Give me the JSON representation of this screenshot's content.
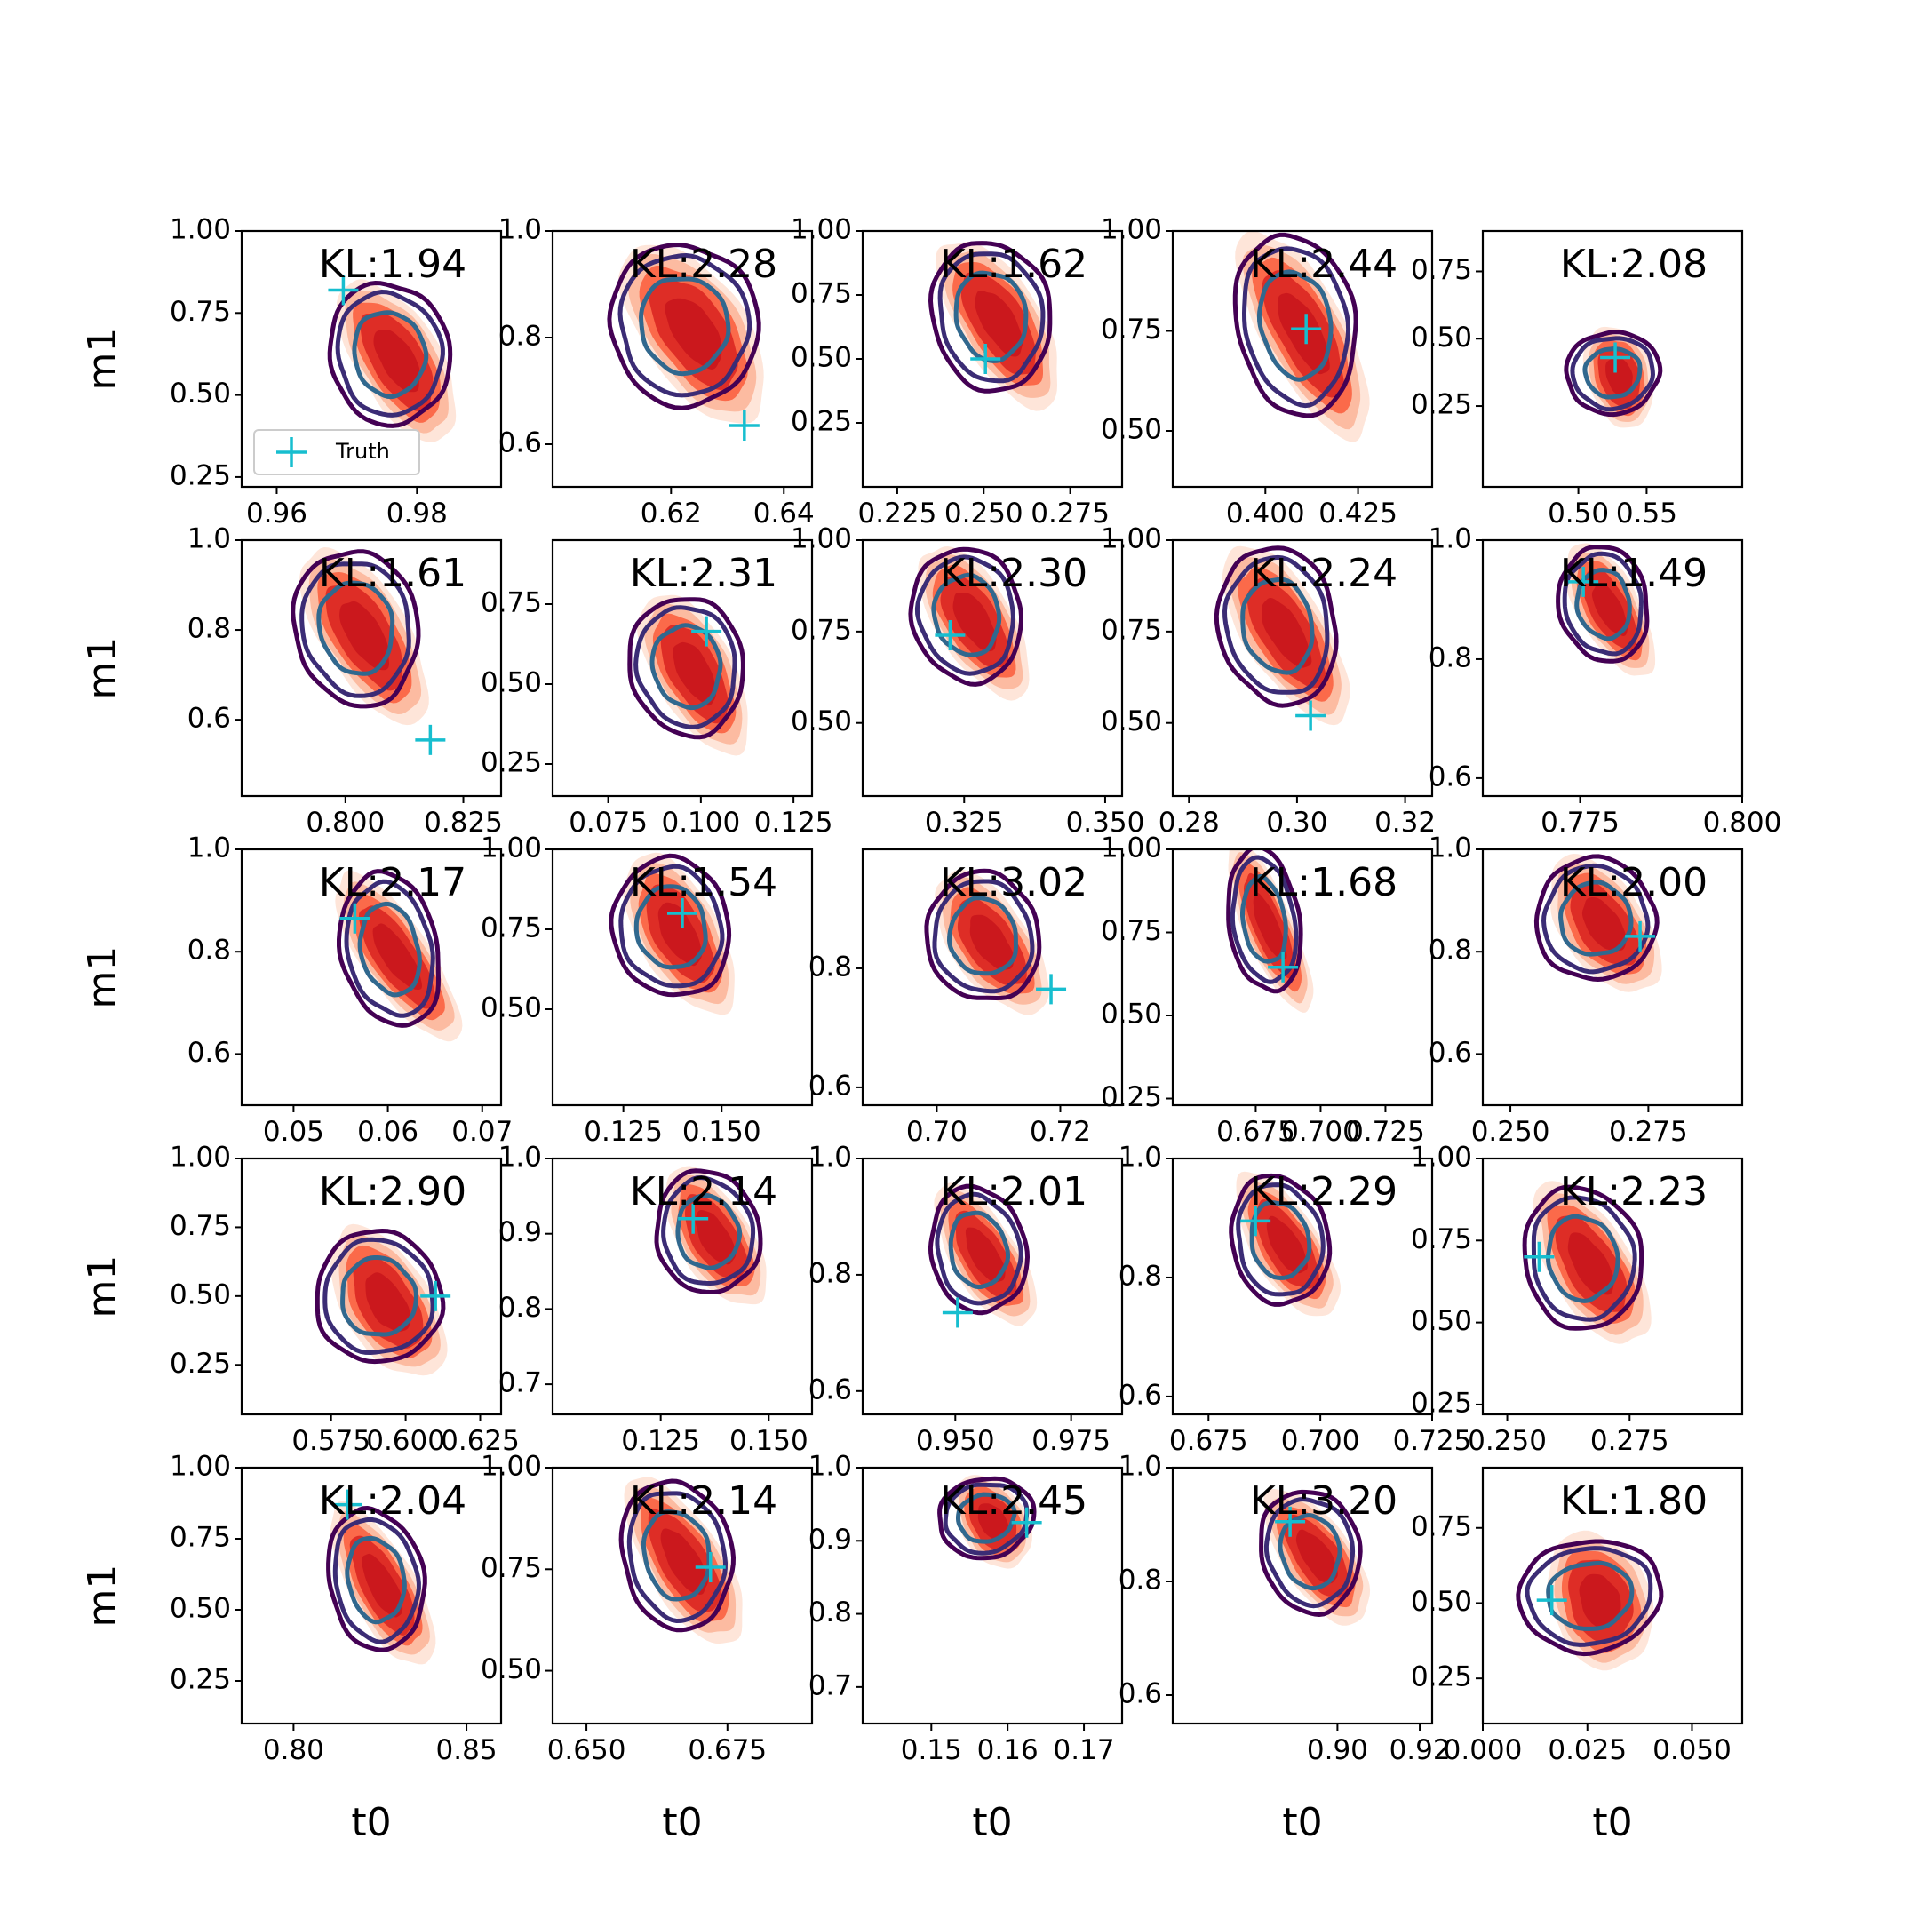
{
  "chart_data": {
    "type": "scatter",
    "grid": false,
    "xlabel": "t0",
    "ylabel": "m1",
    "legend": {
      "label": "Truth",
      "placement": "lower-left",
      "panel": 0
    },
    "colors": {
      "fill": [
        "#fee5d9",
        "#fcbba1",
        "#fb6a4a",
        "#de2d26",
        "#cb181d"
      ],
      "contour_outer": "#440154",
      "contour_mid": "#3b2c75",
      "contour_inner": "#31688e",
      "truth": "#17becf"
    },
    "panels": [
      {
        "kl": "KL:1.94",
        "xlim": [
          0.955,
          0.992
        ],
        "ylim": [
          0.22,
          1.0
        ],
        "xticks": [
          0.96,
          0.98
        ],
        "xtick_labels": [
          "0.96",
          "0.98"
        ],
        "yticks": [
          0.25,
          0.5,
          0.75,
          1.0
        ],
        "ytick_labels": [
          "0.25",
          "0.50",
          "0.75",
          "1.00"
        ],
        "truth": [
          0.9695,
          0.82
        ],
        "center": [
          0.9765,
          0.62
        ],
        "spread": [
          0.0075,
          0.2
        ],
        "tilt": -0.55
      },
      {
        "kl": "KL:2.28",
        "xlim": [
          0.599,
          0.645
        ],
        "ylim": [
          0.52,
          1.0
        ],
        "xticks": [
          0.62,
          0.64
        ],
        "xtick_labels": [
          "0.62",
          "0.64"
        ],
        "yticks": [
          0.6,
          0.8,
          1.0
        ],
        "ytick_labels": [
          "0.6",
          "0.8",
          "1.0"
        ],
        "truth": [
          0.633,
          0.635
        ],
        "center": [
          0.623,
          0.82
        ],
        "spread": [
          0.0115,
          0.14
        ],
        "tilt": -0.6
      },
      {
        "kl": "KL:1.62",
        "xlim": [
          0.215,
          0.29
        ],
        "ylim": [
          0.0,
          1.0
        ],
        "xticks": [
          0.225,
          0.25,
          0.275
        ],
        "xtick_labels": [
          "0.225",
          "0.250",
          "0.275"
        ],
        "yticks": [
          0.25,
          0.5,
          0.75,
          1.0
        ],
        "ytick_labels": [
          "0.25",
          "0.50",
          "0.75",
          "1.00"
        ],
        "truth": [
          0.2505,
          0.5
        ],
        "center": [
          0.253,
          0.66
        ],
        "spread": [
          0.015,
          0.27
        ],
        "tilt": -0.55
      },
      {
        "kl": "KL:2.44",
        "xlim": [
          0.375,
          0.445
        ],
        "ylim": [
          0.36,
          1.0
        ],
        "xticks": [
          0.4,
          0.425
        ],
        "xtick_labels": [
          "0.400",
          "0.425"
        ],
        "yticks": [
          0.5,
          0.75,
          1.0
        ],
        "ytick_labels": [
          "0.50",
          "0.75",
          "1.00"
        ],
        "truth": [
          0.411,
          0.755
        ],
        "center": [
          0.409,
          0.76
        ],
        "spread": [
          0.014,
          0.21
        ],
        "tilt": -0.5
      },
      {
        "kl": "KL:2.08",
        "xlim": [
          0.43,
          0.62
        ],
        "ylim": [
          -0.05,
          0.9
        ],
        "xticks": [
          0.5,
          0.55
        ],
        "xtick_labels": [
          "0.50",
          "0.55"
        ],
        "yticks": [
          0.25,
          0.5,
          0.75
        ],
        "ytick_labels": [
          "0.25",
          "0.50",
          "0.75"
        ],
        "truth": [
          0.527,
          0.43
        ],
        "center": [
          0.527,
          0.37
        ],
        "spread": [
          0.03,
          0.14
        ],
        "tilt": -0.3
      },
      {
        "kl": "KL:1.61",
        "xlim": [
          0.778,
          0.833
        ],
        "ylim": [
          0.43,
          1.0
        ],
        "xticks": [
          0.8,
          0.825
        ],
        "xtick_labels": [
          "0.800",
          "0.825"
        ],
        "yticks": [
          0.6,
          0.8,
          1.0
        ],
        "ytick_labels": [
          "0.6",
          "0.8",
          "1.0"
        ],
        "truth": [
          0.818,
          0.555
        ],
        "center": [
          0.803,
          0.8
        ],
        "spread": [
          0.0115,
          0.16
        ],
        "tilt": -0.55
      },
      {
        "kl": "KL:2.31",
        "xlim": [
          0.06,
          0.13
        ],
        "ylim": [
          0.15,
          0.95
        ],
        "xticks": [
          0.075,
          0.1,
          0.125
        ],
        "xtick_labels": [
          "0.075",
          "0.100",
          "0.125"
        ],
        "yticks": [
          0.25,
          0.5,
          0.75
        ],
        "ytick_labels": [
          "0.25",
          "0.50",
          "0.75"
        ],
        "truth": [
          0.1015,
          0.665
        ],
        "center": [
          0.097,
          0.55
        ],
        "spread": [
          0.0135,
          0.2
        ],
        "tilt": -0.5
      },
      {
        "kl": "KL:2.30",
        "xlim": [
          0.307,
          0.353
        ],
        "ylim": [
          0.3,
          1.0
        ],
        "xticks": [
          0.325,
          0.35
        ],
        "xtick_labels": [
          "0.325",
          "0.350"
        ],
        "yticks": [
          0.5,
          0.75,
          1.0
        ],
        "ytick_labels": [
          "0.50",
          "0.75",
          "1.00"
        ],
        "truth": [
          0.3225,
          0.74
        ],
        "center": [
          0.326,
          0.79
        ],
        "spread": [
          0.0085,
          0.17
        ],
        "tilt": -0.55
      },
      {
        "kl": "KL:2.24",
        "xlim": [
          0.277,
          0.325
        ],
        "ylim": [
          0.3,
          1.0
        ],
        "xticks": [
          0.28,
          0.3,
          0.32
        ],
        "xtick_labels": [
          "0.28",
          "0.30",
          "0.32"
        ],
        "yticks": [
          0.5,
          0.75,
          1.0
        ],
        "ytick_labels": [
          "0.50",
          "0.75",
          "1.00"
        ],
        "truth": [
          0.3025,
          0.52
        ],
        "center": [
          0.297,
          0.76
        ],
        "spread": [
          0.0095,
          0.2
        ],
        "tilt": -0.55
      },
      {
        "kl": "KL:1.49",
        "xlim": [
          0.76,
          0.8
        ],
        "ylim": [
          0.57,
          1.0
        ],
        "xticks": [
          0.775,
          0.8
        ],
        "xtick_labels": [
          "0.775",
          "0.800"
        ],
        "yticks": [
          0.6,
          0.8,
          1.0
        ],
        "ytick_labels": [
          "0.6",
          "0.8",
          "1.0"
        ],
        "truth": [
          0.7755,
          0.93
        ],
        "center": [
          0.779,
          0.89
        ],
        "spread": [
          0.006,
          0.09
        ],
        "tilt": -0.5
      },
      {
        "kl": "KL:2.17",
        "xlim": [
          0.0445,
          0.072
        ],
        "ylim": [
          0.5,
          1.0
        ],
        "xticks": [
          0.05,
          0.06,
          0.07
        ],
        "xtick_labels": [
          "0.05",
          "0.06",
          "0.07"
        ],
        "yticks": [
          0.6,
          0.8,
          1.0
        ],
        "ytick_labels": [
          "0.6",
          "0.8",
          "1.0"
        ],
        "truth": [
          0.0565,
          0.865
        ],
        "center": [
          0.0605,
          0.8
        ],
        "spread": [
          0.0045,
          0.14
        ],
        "tilt": -0.6
      },
      {
        "kl": "KL:1.54",
        "xlim": [
          0.107,
          0.173
        ],
        "ylim": [
          0.2,
          1.0
        ],
        "xticks": [
          0.125,
          0.15
        ],
        "xtick_labels": [
          "0.125",
          "0.150"
        ],
        "yticks": [
          0.5,
          0.75,
          1.0
        ],
        "ytick_labels": [
          "0.50",
          "0.75",
          "1.00"
        ],
        "truth": [
          0.14,
          0.8
        ],
        "center": [
          0.138,
          0.75
        ],
        "spread": [
          0.013,
          0.2
        ],
        "tilt": -0.5
      },
      {
        "kl": "KL:3.02",
        "xlim": [
          0.688,
          0.73
        ],
        "ylim": [
          0.57,
          1.0
        ],
        "xticks": [
          0.7,
          0.72
        ],
        "xtick_labels": [
          "0.70",
          "0.72"
        ],
        "yticks": [
          0.6,
          0.8
        ],
        "ytick_labels": [
          "0.6",
          "0.8"
        ],
        "truth": [
          0.7185,
          0.765
        ],
        "center": [
          0.708,
          0.85
        ],
        "spread": [
          0.008,
          0.1
        ],
        "tilt": -0.6
      },
      {
        "kl": "KL:1.68",
        "xlim": [
          0.643,
          0.743
        ],
        "ylim": [
          0.23,
          1.0
        ],
        "xticks": [
          0.675,
          0.7,
          0.725
        ],
        "xtick_labels": [
          "0.675",
          "0.700",
          "0.725"
        ],
        "yticks": [
          0.25,
          0.5,
          0.75,
          1.0
        ],
        "ytick_labels": [
          "0.25",
          "0.50",
          "0.75",
          "1.00"
        ],
        "truth": [
          0.6855,
          0.645
        ],
        "center": [
          0.679,
          0.78
        ],
        "spread": [
          0.012,
          0.2
        ],
        "tilt": -0.4
      },
      {
        "kl": "KL:2.00",
        "xlim": [
          0.245,
          0.292
        ],
        "ylim": [
          0.5,
          1.0
        ],
        "xticks": [
          0.25,
          0.275
        ],
        "xtick_labels": [
          "0.250",
          "0.275"
        ],
        "yticks": [
          0.6,
          0.8,
          1.0
        ],
        "ytick_labels": [
          "0.6",
          "0.8",
          "1.0"
        ],
        "truth": [
          0.2735,
          0.83
        ],
        "center": [
          0.266,
          0.86
        ],
        "spread": [
          0.0095,
          0.11
        ],
        "tilt": -0.6
      },
      {
        "kl": "KL:2.90",
        "xlim": [
          0.545,
          0.632
        ],
        "ylim": [
          0.07,
          1.0
        ],
        "xticks": [
          0.575,
          0.6,
          0.625
        ],
        "xtick_labels": [
          "0.575",
          "0.600",
          "0.625"
        ],
        "yticks": [
          0.25,
          0.5,
          0.75,
          1.0
        ],
        "ytick_labels": [
          "0.25",
          "0.50",
          "0.75",
          "1.00"
        ],
        "truth": [
          0.61,
          0.5
        ],
        "center": [
          0.592,
          0.49
        ],
        "spread": [
          0.0185,
          0.22
        ],
        "tilt": -0.55
      },
      {
        "kl": "KL:2.14",
        "xlim": [
          0.1,
          0.16
        ],
        "ylim": [
          0.66,
          1.0
        ],
        "xticks": [
          0.125,
          0.15
        ],
        "xtick_labels": [
          "0.125",
          "0.150"
        ],
        "yticks": [
          0.7,
          0.8,
          0.9,
          1.0
        ],
        "ytick_labels": [
          "0.7",
          "0.8",
          "0.9",
          "1.0"
        ],
        "truth": [
          0.1325,
          0.92
        ],
        "center": [
          0.1365,
          0.9
        ],
        "spread": [
          0.0105,
          0.075
        ],
        "tilt": -0.55
      },
      {
        "kl": "KL:2.01",
        "xlim": [
          0.93,
          0.986
        ],
        "ylim": [
          0.56,
          1.0
        ],
        "xticks": [
          0.95,
          0.975
        ],
        "xtick_labels": [
          "0.950",
          "0.975"
        ],
        "yticks": [
          0.6,
          0.8,
          1.0
        ],
        "ytick_labels": [
          "0.6",
          "0.8",
          "1.0"
        ],
        "truth": [
          0.9505,
          0.735
        ],
        "center": [
          0.9555,
          0.84
        ],
        "spread": [
          0.009,
          0.1
        ],
        "tilt": -0.55
      },
      {
        "kl": "KL:2.29",
        "xlim": [
          0.667,
          0.725
        ],
        "ylim": [
          0.57,
          1.0
        ],
        "xticks": [
          0.675,
          0.7,
          0.725
        ],
        "xtick_labels": [
          "0.675",
          "0.700",
          "0.725"
        ],
        "yticks": [
          0.6,
          0.8,
          1.0
        ],
        "ytick_labels": [
          "0.6",
          "0.8",
          "1.0"
        ],
        "truth": [
          0.6855,
          0.895
        ],
        "center": [
          0.6915,
          0.86
        ],
        "spread": [
          0.0095,
          0.1
        ],
        "tilt": -0.55
      },
      {
        "kl": "KL:2.23",
        "xlim": [
          0.245,
          0.298
        ],
        "ylim": [
          0.22,
          1.0
        ],
        "xticks": [
          0.25,
          0.275
        ],
        "xtick_labels": [
          "0.250",
          "0.275"
        ],
        "yticks": [
          0.25,
          0.5,
          0.75,
          1.0
        ],
        "ytick_labels": [
          "0.25",
          "0.50",
          "0.75",
          "1.00"
        ],
        "truth": [
          0.2565,
          0.7
        ],
        "center": [
          0.266,
          0.69
        ],
        "spread": [
          0.0105,
          0.2
        ],
        "tilt": -0.55
      },
      {
        "kl": "KL:2.04",
        "xlim": [
          0.785,
          0.86
        ],
        "ylim": [
          0.1,
          1.0
        ],
        "xticks": [
          0.8,
          0.85
        ],
        "xtick_labels": [
          "0.80",
          "0.85"
        ],
        "yticks": [
          0.25,
          0.5,
          0.75,
          1.0
        ],
        "ytick_labels": [
          "0.25",
          "0.50",
          "0.75",
          "1.00"
        ],
        "truth": [
          0.8155,
          0.87
        ],
        "center": [
          0.8245,
          0.6
        ],
        "spread": [
          0.012,
          0.23
        ],
        "tilt": -0.5
      },
      {
        "kl": "KL:2.14",
        "xlim": [
          0.644,
          0.69
        ],
        "ylim": [
          0.37,
          1.0
        ],
        "xticks": [
          0.65,
          0.675
        ],
        "xtick_labels": [
          "0.650",
          "0.675"
        ],
        "yticks": [
          0.5,
          0.75,
          1.0
        ],
        "ytick_labels": [
          "0.50",
          "0.75",
          "1.00"
        ],
        "truth": [
          0.672,
          0.755
        ],
        "center": [
          0.6665,
          0.78
        ],
        "spread": [
          0.0085,
          0.17
        ],
        "tilt": -0.55
      },
      {
        "kl": "KL:2.45",
        "xlim": [
          0.141,
          0.175
        ],
        "ylim": [
          0.65,
          1.0
        ],
        "xticks": [
          0.15,
          0.16,
          0.17
        ],
        "xtick_labels": [
          "0.15",
          "0.16",
          "0.17"
        ],
        "yticks": [
          0.7,
          0.8,
          0.9,
          1.0
        ],
        "ytick_labels": [
          "0.7",
          "0.8",
          "0.9",
          "1.0"
        ],
        "truth": [
          0.1625,
          0.925
        ],
        "center": [
          0.1575,
          0.93
        ],
        "spread": [
          0.0055,
          0.05
        ],
        "tilt": -0.55
      },
      {
        "kl": "KL:3.20",
        "xlim": [
          0.86,
          0.923
        ],
        "ylim": [
          0.55,
          1.0
        ],
        "xticks": [
          0.9,
          0.92
        ],
        "xtick_labels": [
          "0.90",
          "0.92"
        ],
        "yticks": [
          0.6,
          0.8,
          1.0
        ],
        "ytick_labels": [
          "0.6",
          "0.8",
          "1.0"
        ],
        "truth": [
          0.8885,
          0.905
        ],
        "center": [
          0.894,
          0.85
        ],
        "spread": [
          0.0105,
          0.1
        ],
        "tilt": -0.6
      },
      {
        "kl": "KL:1.80",
        "xlim": [
          0.0,
          0.062
        ],
        "ylim": [
          0.1,
          0.95
        ],
        "xticks": [
          0.0,
          0.025,
          0.05
        ],
        "xtick_labels": [
          "0.000",
          "0.025",
          "0.050"
        ],
        "yticks": [
          0.25,
          0.5,
          0.75
        ],
        "ytick_labels": [
          "0.25",
          "0.50",
          "0.75"
        ],
        "truth": [
          0.0165,
          0.51
        ],
        "center": [
          0.0265,
          0.52
        ],
        "spread": [
          0.015,
          0.17
        ],
        "tilt": -0.35
      }
    ]
  }
}
